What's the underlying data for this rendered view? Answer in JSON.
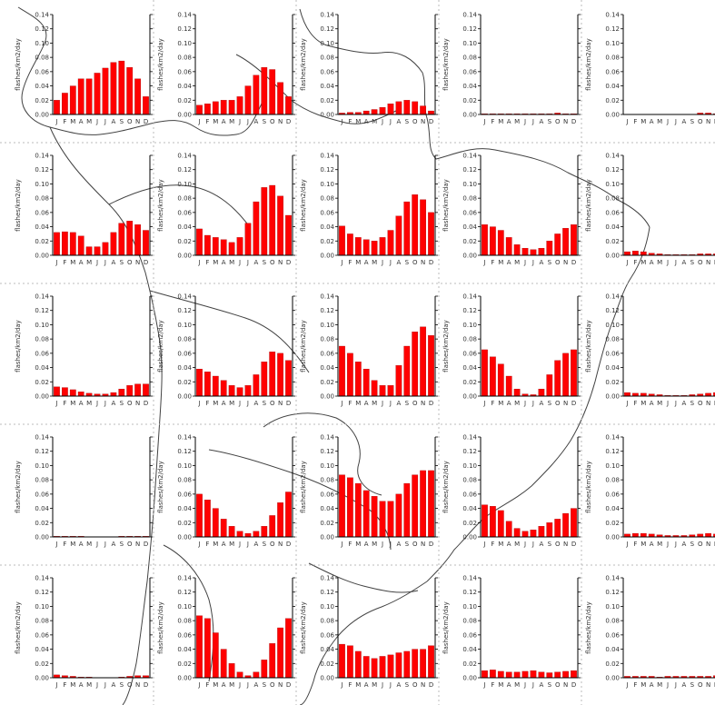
{
  "chart_data": {
    "type": "bar",
    "layout": "small-multiples grid over a map of South America",
    "rows": 5,
    "cols": 5,
    "month_labels": [
      "J",
      "F",
      "M",
      "A",
      "M",
      "J",
      "J",
      "A",
      "S",
      "O",
      "N",
      "D"
    ],
    "ylabel": "flashes/km2/day",
    "ylim": [
      0,
      0.14
    ],
    "yticks": [
      0.0,
      0.02,
      0.04,
      0.06,
      0.08,
      0.1,
      0.12,
      0.14
    ],
    "ytick_labels": [
      "0.00",
      "0.02",
      "0.04",
      "0.06",
      "0.08",
      "0.10",
      "0.12",
      "0.14"
    ],
    "bar_color": "#ff0000",
    "grid": false,
    "panels": [
      [
        0.02,
        0.03,
        0.04,
        0.05,
        0.05,
        0.058,
        0.065,
        0.073,
        0.075,
        0.066,
        0.05,
        0.025
      ],
      [
        0.013,
        0.015,
        0.018,
        0.02,
        0.02,
        0.025,
        0.04,
        0.055,
        0.066,
        0.063,
        0.045,
        0.025
      ],
      [
        0.002,
        0.003,
        0.003,
        0.005,
        0.007,
        0.01,
        0.015,
        0.018,
        0.02,
        0.018,
        0.012,
        0.005
      ],
      [
        0.001,
        0.001,
        0.001,
        0.001,
        0.001,
        0.001,
        0.001,
        0.001,
        0.001,
        0.002,
        0.001,
        0.001
      ],
      [
        0.0,
        0.0,
        0.0,
        0.0,
        0.0,
        0.0,
        0.0,
        0.0,
        0.0,
        0.002,
        0.002,
        0.001
      ],
      [
        0.032,
        0.033,
        0.032,
        0.027,
        0.012,
        0.012,
        0.018,
        0.032,
        0.045,
        0.048,
        0.043,
        0.035
      ],
      [
        0.037,
        0.028,
        0.025,
        0.022,
        0.018,
        0.025,
        0.045,
        0.075,
        0.095,
        0.098,
        0.083,
        0.056
      ],
      [
        0.041,
        0.03,
        0.025,
        0.022,
        0.02,
        0.025,
        0.035,
        0.055,
        0.075,
        0.085,
        0.078,
        0.06
      ],
      [
        0.043,
        0.04,
        0.035,
        0.025,
        0.015,
        0.01,
        0.008,
        0.01,
        0.02,
        0.03,
        0.038,
        0.043
      ],
      [
        0.005,
        0.006,
        0.005,
        0.003,
        0.002,
        0.001,
        0.001,
        0.001,
        0.001,
        0.002,
        0.002,
        0.002
      ],
      [
        0.013,
        0.012,
        0.009,
        0.006,
        0.004,
        0.003,
        0.003,
        0.005,
        0.01,
        0.015,
        0.017,
        0.017
      ],
      [
        0.038,
        0.034,
        0.028,
        0.022,
        0.015,
        0.012,
        0.015,
        0.03,
        0.048,
        0.062,
        0.06,
        0.05
      ],
      [
        0.07,
        0.06,
        0.048,
        0.038,
        0.022,
        0.015,
        0.015,
        0.043,
        0.07,
        0.09,
        0.097,
        0.085
      ],
      [
        0.065,
        0.055,
        0.045,
        0.028,
        0.01,
        0.003,
        0.002,
        0.01,
        0.03,
        0.05,
        0.06,
        0.065
      ],
      [
        0.005,
        0.004,
        0.004,
        0.003,
        0.002,
        0.001,
        0.001,
        0.001,
        0.002,
        0.003,
        0.004,
        0.005
      ],
      [
        0.001,
        0.001,
        0.001,
        0.001,
        0.0,
        0.0,
        0.0,
        0.0,
        0.001,
        0.001,
        0.001,
        0.001
      ],
      [
        0.06,
        0.052,
        0.04,
        0.025,
        0.015,
        0.008,
        0.005,
        0.008,
        0.015,
        0.03,
        0.048,
        0.063
      ],
      [
        0.087,
        0.083,
        0.075,
        0.065,
        0.057,
        0.05,
        0.05,
        0.06,
        0.075,
        0.087,
        0.093,
        0.093
      ],
      [
        0.045,
        0.043,
        0.037,
        0.022,
        0.012,
        0.008,
        0.01,
        0.015,
        0.02,
        0.025,
        0.033,
        0.04
      ],
      [
        0.004,
        0.005,
        0.005,
        0.004,
        0.003,
        0.002,
        0.002,
        0.002,
        0.003,
        0.004,
        0.005,
        0.004
      ],
      [
        0.004,
        0.003,
        0.002,
        0.001,
        0.001,
        0.0,
        0.0,
        0.0,
        0.001,
        0.002,
        0.003,
        0.003
      ],
      [
        0.087,
        0.083,
        0.063,
        0.04,
        0.02,
        0.008,
        0.003,
        0.008,
        0.025,
        0.048,
        0.07,
        0.083
      ],
      [
        0.047,
        0.045,
        0.037,
        0.03,
        0.027,
        0.03,
        0.032,
        0.035,
        0.037,
        0.04,
        0.04,
        0.045
      ],
      [
        0.01,
        0.011,
        0.009,
        0.008,
        0.008,
        0.009,
        0.01,
        0.008,
        0.007,
        0.008,
        0.009,
        0.01
      ],
      [
        0.002,
        0.002,
        0.002,
        0.002,
        0.001,
        0.002,
        0.002,
        0.002,
        0.002,
        0.002,
        0.002,
        0.003
      ]
    ]
  },
  "style": {
    "bar_color": "#ff0000",
    "axis_color": "#000000",
    "text_color": "#333333",
    "divider_color": "#bbbbbb",
    "map_color": "#222222"
  }
}
